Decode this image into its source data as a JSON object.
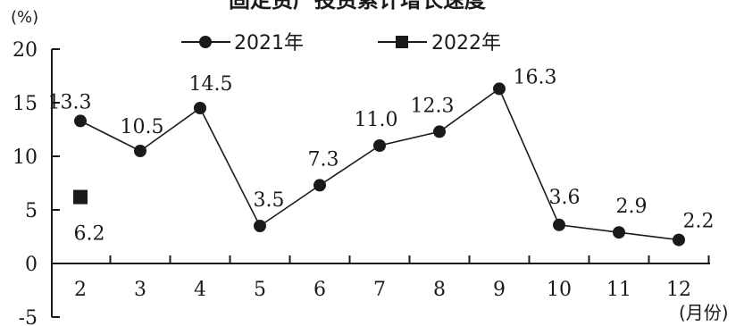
{
  "chart_data": {
    "type": "line",
    "title": "固定资产投资累计增长速度",
    "ylabel": "(%)",
    "xlabel": "(月份)",
    "x": [
      "2",
      "3",
      "4",
      "5",
      "6",
      "7",
      "8",
      "9",
      "10",
      "11",
      "12"
    ],
    "ylim": [
      -5,
      20
    ],
    "yticks": [
      "-5",
      "0",
      "5",
      "10",
      "15",
      "20"
    ],
    "grid": false,
    "legend_position": "top",
    "series": [
      {
        "name": "2021年",
        "marker": "circle",
        "color": "#1a1a1a",
        "values": [
          13.3,
          10.5,
          14.5,
          3.5,
          7.3,
          11.0,
          12.3,
          16.3,
          3.6,
          2.9,
          2.2
        ],
        "labels": [
          "13.3",
          "10.5",
          "14.5",
          "3.5",
          "7.3",
          "11.0",
          "12.3",
          "16.3",
          "3.6",
          "2.9",
          "2.2"
        ]
      },
      {
        "name": "2022年",
        "marker": "square",
        "color": "#1a1a1a",
        "values": [
          6.2,
          null,
          null,
          null,
          null,
          null,
          null,
          null,
          null,
          null,
          null
        ],
        "labels": [
          "6.2",
          "",
          "",
          "",
          "",
          "",
          "",
          "",
          "",
          "",
          ""
        ]
      }
    ]
  }
}
